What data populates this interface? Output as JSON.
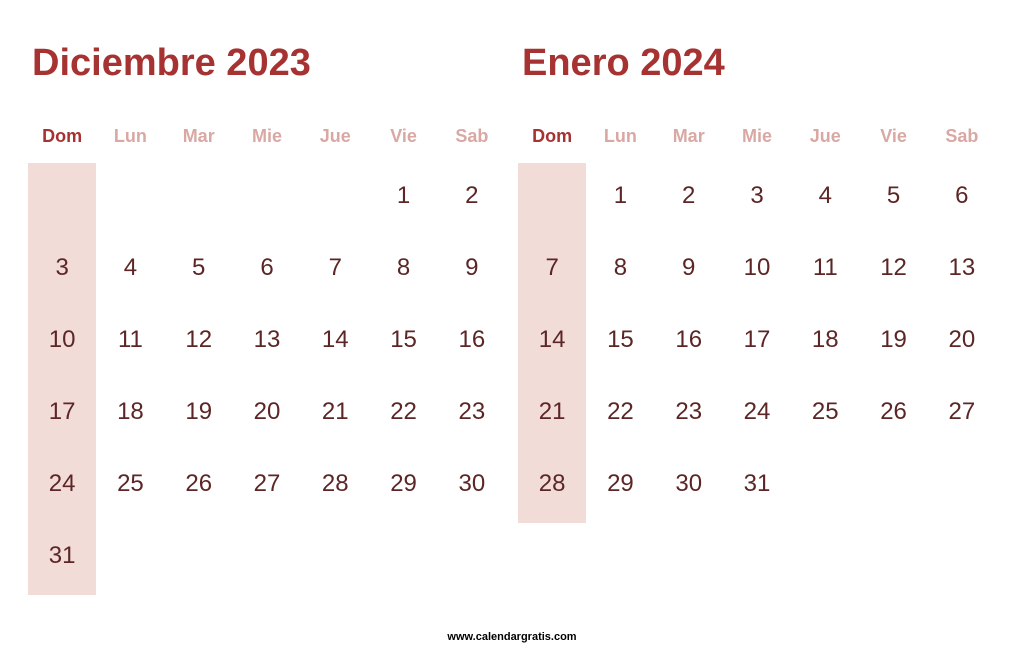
{
  "colors": {
    "title": "#a63232",
    "header_normal": "#d9a8a3",
    "header_sunday": "#a63232",
    "day_number": "#5c2626",
    "sunday_bg": "#f2dcd8",
    "background": "#ffffff"
  },
  "typography": {
    "title_fontsize": 38,
    "header_fontsize": 18,
    "day_fontsize": 24
  },
  "watermark": "www.calendargratis.com",
  "day_headers": [
    "Dom",
    "Lun",
    "Mar",
    "Mie",
    "Jue",
    "Vie",
    "Sab"
  ],
  "months": [
    {
      "title": "Diciembre 2023",
      "weeks": [
        [
          "",
          "",
          "",
          "",
          "",
          "1",
          "2"
        ],
        [
          "3",
          "4",
          "5",
          "6",
          "7",
          "8",
          "9"
        ],
        [
          "10",
          "11",
          "12",
          "13",
          "14",
          "15",
          "16"
        ],
        [
          "17",
          "18",
          "19",
          "20",
          "21",
          "22",
          "23"
        ],
        [
          "24",
          "25",
          "26",
          "27",
          "28",
          "29",
          "30"
        ],
        [
          "31",
          "",
          "",
          "",
          "",
          "",
          ""
        ]
      ],
      "sunday_bg_rows": 6
    },
    {
      "title": "Enero 2024",
      "weeks": [
        [
          "",
          "1",
          "2",
          "3",
          "4",
          "5",
          "6"
        ],
        [
          "7",
          "8",
          "9",
          "10",
          "11",
          "12",
          "13"
        ],
        [
          "14",
          "15",
          "16",
          "17",
          "18",
          "19",
          "20"
        ],
        [
          "21",
          "22",
          "23",
          "24",
          "25",
          "26",
          "27"
        ],
        [
          "28",
          "29",
          "30",
          "31",
          "",
          "",
          ""
        ]
      ],
      "sunday_bg_rows": 5
    }
  ]
}
